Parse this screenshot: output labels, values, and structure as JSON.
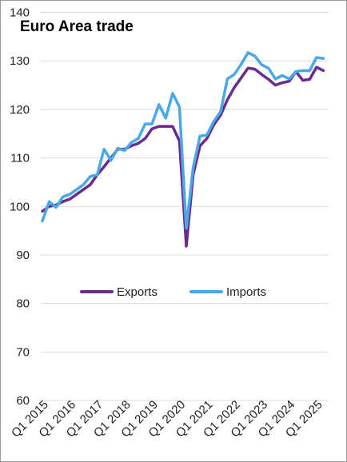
{
  "chart_data": {
    "type": "line",
    "title": "Euro Area trade",
    "xlabel": "",
    "ylabel": "",
    "ylim": [
      60,
      140
    ],
    "yticks": [
      60,
      70,
      80,
      90,
      100,
      110,
      120,
      130,
      140
    ],
    "grid": "horizontal",
    "legend_position": "center",
    "x_tick_labels": [
      "Q1 2015",
      "Q1 2016",
      "Q1 2017",
      "Q1 2018",
      "Q1 2019",
      "Q1 2020",
      "Q1 2021",
      "Q1 2022",
      "Q1 2023",
      "Q1 2024",
      "Q1 2025"
    ],
    "x_tick_index": [
      0,
      4,
      8,
      12,
      16,
      20,
      24,
      28,
      32,
      36,
      40
    ],
    "x": [
      "Q1 2015",
      "Q2 2015",
      "Q3 2015",
      "Q4 2015",
      "Q1 2016",
      "Q2 2016",
      "Q3 2016",
      "Q4 2016",
      "Q1 2017",
      "Q2 2017",
      "Q3 2017",
      "Q4 2017",
      "Q1 2018",
      "Q2 2018",
      "Q3 2018",
      "Q4 2018",
      "Q1 2019",
      "Q2 2019",
      "Q3 2019",
      "Q4 2019",
      "Q1 2020",
      "Q2 2020",
      "Q3 2020",
      "Q4 2020",
      "Q1 2021",
      "Q2 2021",
      "Q3 2021",
      "Q4 2021",
      "Q1 2022",
      "Q2 2022",
      "Q3 2022",
      "Q4 2022",
      "Q1 2023",
      "Q2 2023",
      "Q3 2023",
      "Q4 2023",
      "Q1 2024",
      "Q2 2024",
      "Q3 2024",
      "Q4 2024",
      "Q1 2025",
      "Q2 2025",
      "Q3 2025"
    ],
    "series": [
      {
        "name": "Exports",
        "color": "#6a2c8c",
        "values": [
          99.0,
          100.0,
          100.3,
          101.0,
          101.5,
          102.5,
          103.5,
          104.5,
          106.5,
          108.2,
          110.0,
          111.8,
          111.8,
          112.5,
          113.0,
          114.0,
          116.0,
          116.5,
          116.5,
          116.5,
          113.5,
          91.8,
          106.5,
          112.5,
          114.0,
          116.8,
          118.8,
          122.0,
          124.5,
          126.5,
          128.5,
          128.3,
          127.2,
          126.2,
          125.0,
          125.5,
          125.8,
          127.8,
          126.0,
          126.2,
          128.7,
          128.0,
          null
        ]
      },
      {
        "name": "Imports",
        "color": "#4aa8e8",
        "values": [
          97.0,
          101.0,
          99.8,
          102.0,
          102.5,
          103.5,
          104.5,
          106.2,
          106.5,
          111.8,
          109.5,
          112.0,
          111.5,
          113.2,
          114.0,
          117.0,
          117.0,
          121.0,
          118.2,
          123.3,
          120.5,
          95.5,
          108.0,
          114.5,
          114.7,
          117.5,
          119.5,
          126.3,
          127.2,
          129.3,
          131.7,
          131.0,
          129.2,
          128.5,
          126.3,
          127.0,
          126.3,
          127.8,
          128.0,
          128.0,
          130.7,
          130.5,
          null
        ]
      }
    ]
  }
}
